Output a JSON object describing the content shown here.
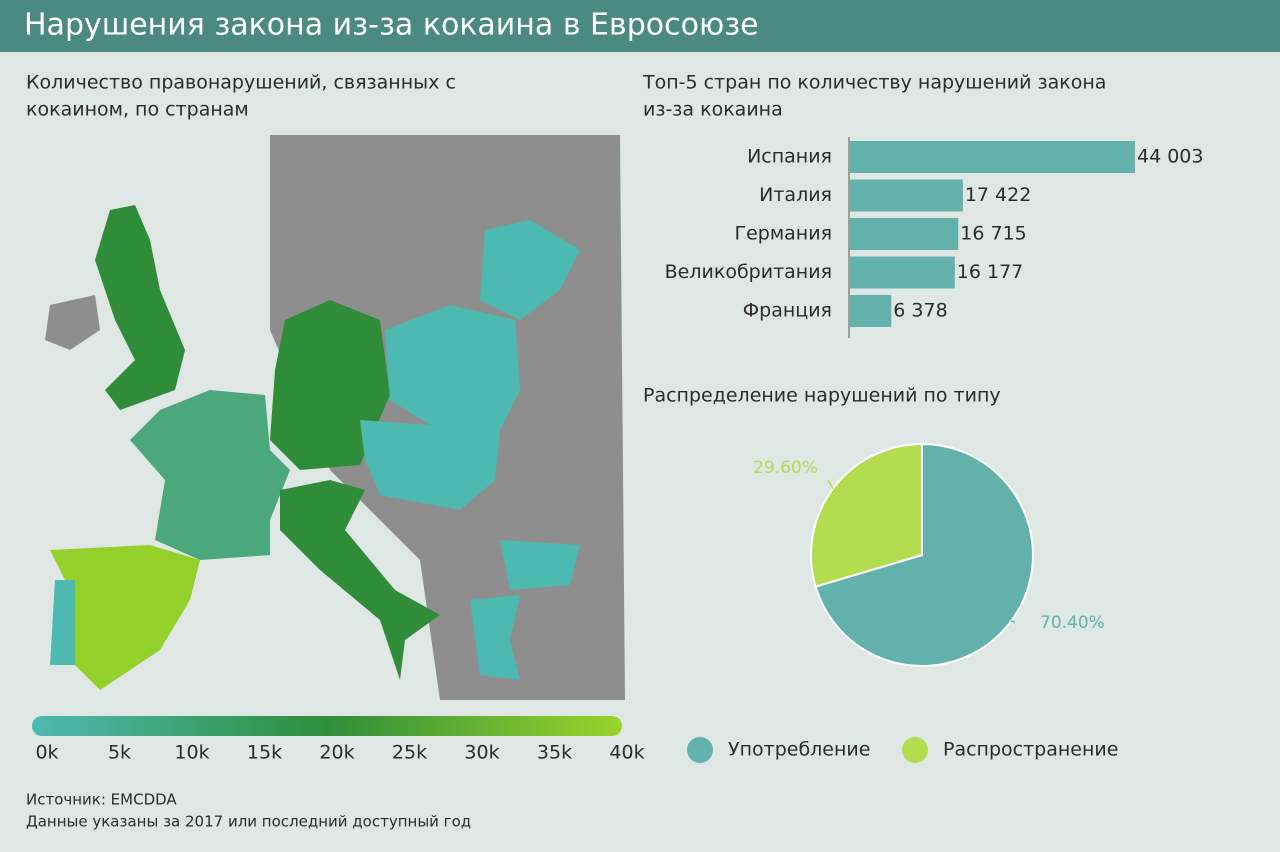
{
  "header": {
    "title": "Нарушения закона из-за кокаина в Евросоюзе"
  },
  "map": {
    "title": [
      "Количество правонарушений, связанных с",
      "кокаином, по странам"
    ],
    "legend_ticks": [
      "0k",
      "5k",
      "10k",
      "15k",
      "20k",
      "25k",
      "30k",
      "35k",
      "40k"
    ]
  },
  "source": [
    "Источник: EMCDDA",
    "Данные указаны за 2017 или последний доступный год"
  ],
  "chart_data": [
    {
      "type": "bar",
      "title": [
        "Топ-5 стран по количеству нарушений закона",
        "из-за кокаина"
      ],
      "categories": [
        "Испания",
        "Италия",
        "Германия",
        "Великобритания",
        "Франция"
      ],
      "values": [
        44003,
        17422,
        16715,
        16177,
        6378
      ],
      "value_labels": [
        "44 003",
        "17 422",
        "16 715",
        "16 177",
        "6 378"
      ],
      "color": "#63b1ab"
    },
    {
      "type": "pie",
      "title": "Распределение нарушений по типу",
      "categories": [
        "Употребление",
        "Распространение"
      ],
      "values": [
        70.4,
        29.6
      ],
      "value_labels": [
        "70.40%",
        "29.60%"
      ],
      "colors": [
        "#63b1ab",
        "#b3dc4e"
      ]
    }
  ]
}
